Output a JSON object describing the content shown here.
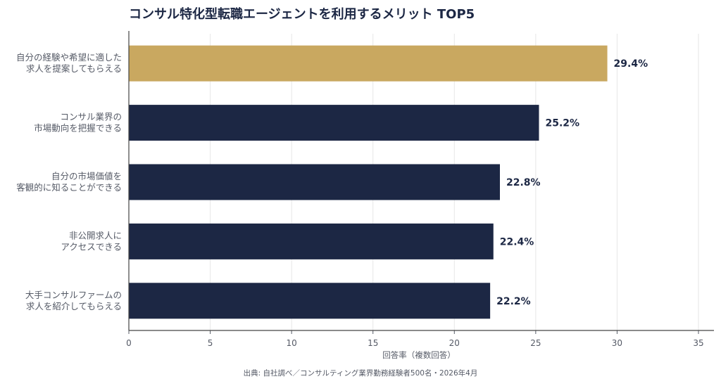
{
  "chart_data": {
    "type": "bar",
    "orientation": "horizontal",
    "title": "コンサル特化型転職エージェントを利用するメリット TOP5",
    "categories": [
      [
        "自分の経験や希望に適した",
        "求人を提案してもらえる"
      ],
      [
        "コンサル業界の",
        "市場動向を把握できる"
      ],
      [
        "自分の市場価値を",
        "客観的に知ることができる"
      ],
      [
        "非公開求人に",
        "アクセスできる"
      ],
      [
        "大手コンサルファームの",
        "求人を紹介してもらえる"
      ]
    ],
    "values": [
      29.4,
      25.2,
      22.8,
      22.4,
      22.2
    ],
    "value_labels": [
      "29.4%",
      "25.2%",
      "22.8%",
      "22.4%",
      "22.2%"
    ],
    "bar_colors": [
      "#c9a860",
      "#1c2744",
      "#1c2744",
      "#1c2744",
      "#1c2744"
    ],
    "xlabel": "回答率（複数回答）",
    "xlim": [
      0,
      35
    ],
    "xticks": [
      0,
      5,
      10,
      15,
      20,
      25,
      30,
      35
    ],
    "grid": "vertical",
    "source": "出典: 自社調べ／コンサルティング業界勤務経験者500名・2026年4月"
  },
  "colors": {
    "highlight": "#c9a860",
    "primary": "#1c2744",
    "grid": "#e6e6e6",
    "axis": "#555a66"
  }
}
